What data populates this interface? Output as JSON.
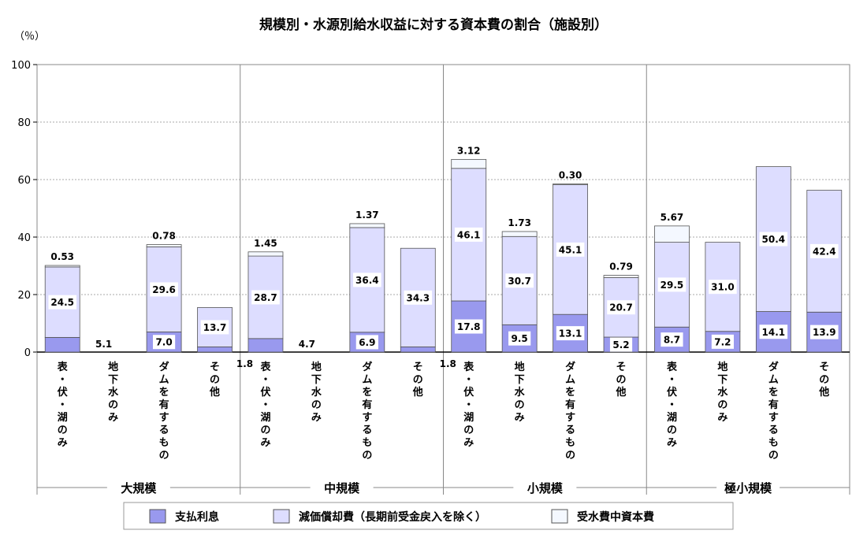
{
  "chart_data": {
    "type": "bar",
    "stacked": true,
    "title": "規模別・水源別給水収益に対する資本費の割合（施設別）",
    "ylabel": "（％）",
    "ylim": [
      0,
      100
    ],
    "yticks": [
      0,
      20,
      40,
      60,
      80,
      100
    ],
    "grid": true,
    "legend_position": "bottom",
    "groups": [
      {
        "name": "大規模",
        "categories": [
          "表・伏・湖のみ",
          "地下水のみ",
          "ダムを有するもの",
          "その他"
        ]
      },
      {
        "name": "中規模",
        "categories": [
          "表・伏・湖のみ",
          "地下水のみ",
          "ダムを有するもの",
          "その他"
        ]
      },
      {
        "name": "小規模",
        "categories": [
          "表・伏・湖のみ",
          "地下水のみ",
          "ダムを有するもの",
          "その他"
        ]
      },
      {
        "name": "極小規模",
        "categories": [
          "表・伏・湖のみ",
          "地下水のみ",
          "ダムを有するもの",
          "その他"
        ]
      }
    ],
    "series": [
      {
        "name": "支払利息",
        "color": "#9999ee",
        "values": [
          5.1,
          5.1,
          7.0,
          1.8,
          4.7,
          4.7,
          6.9,
          1.8,
          17.8,
          9.5,
          13.1,
          5.2,
          8.7,
          7.2,
          14.1,
          13.9
        ],
        "labels": [
          "",
          "5.1",
          "7.0",
          "1.8",
          "",
          "4.7",
          "6.9",
          "1.8",
          "17.8",
          "9.5",
          "13.1",
          "5.2",
          "8.7",
          "7.2",
          "14.1",
          "13.9"
        ]
      },
      {
        "name": "減価償却費（長期前受金戻入を除く）",
        "color": "#ddddff",
        "values": [
          24.5,
          0,
          29.6,
          13.7,
          28.7,
          0,
          36.4,
          34.3,
          46.1,
          30.7,
          45.1,
          20.7,
          29.5,
          31.0,
          50.4,
          42.4
        ],
        "labels": [
          "24.5",
          "",
          "29.6",
          "13.7",
          "28.7",
          "",
          "36.4",
          "34.3",
          "46.1",
          "30.7",
          "45.1",
          "20.7",
          "29.5",
          "31.0",
          "50.4",
          "42.4"
        ]
      },
      {
        "name": "受水費中資本費",
        "color": "#f4f8ff",
        "values": [
          0.53,
          0,
          0.78,
          0,
          1.45,
          0,
          1.37,
          0,
          3.12,
          1.73,
          0.3,
          0.79,
          5.67,
          0,
          0,
          0
        ],
        "labels": [
          "0.53",
          "",
          "0.78",
          "",
          "1.45",
          "",
          "1.37",
          "",
          "3.12",
          "1.73",
          "0.30",
          "0.79",
          "5.67",
          "",
          "",
          ""
        ]
      }
    ]
  }
}
